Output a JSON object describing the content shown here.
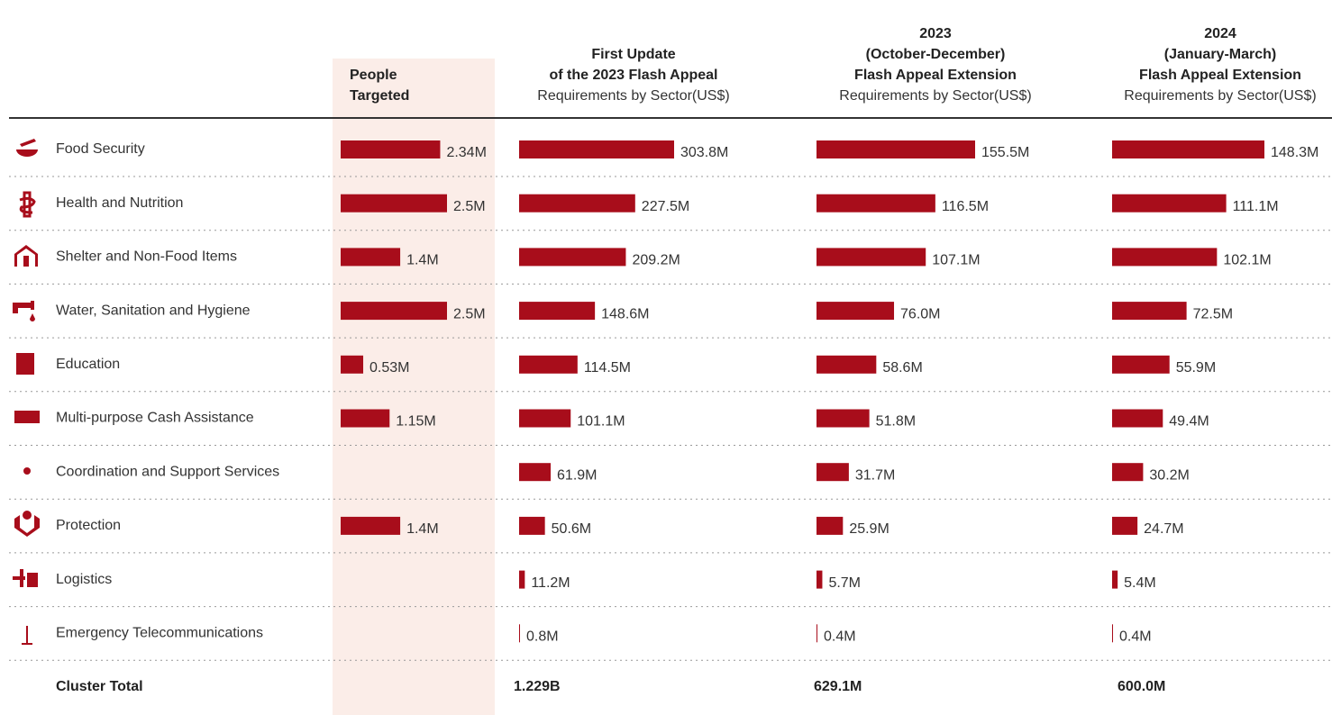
{
  "table": {
    "columns": [
      {
        "title": [
          "People",
          "Targeted"
        ]
      },
      {
        "title": [
          "First Update",
          "of the 2023 Flash Appeal"
        ],
        "subtitle": "Requirements by Sector(US$)"
      },
      {
        "title": [
          "2023",
          "(October-December)",
          "Flash Appeal Extension"
        ],
        "subtitle": "Requirements by Sector(US$)"
      },
      {
        "title": [
          "2024",
          "(January-March)",
          "Flash Appeal Extension"
        ],
        "subtitle": "Requirements by Sector(US$)"
      }
    ],
    "color": "#a80d1b",
    "rows": [
      {
        "label": "Food Security",
        "values": [
          2.34,
          303.8,
          155.5,
          148.3
        ],
        "value_labels": [
          "2.34M",
          "303.8M",
          "155.5M",
          "148.3M"
        ]
      },
      {
        "label": "Health and Nutrition",
        "values": [
          2.5,
          227.5,
          116.5,
          111.1
        ],
        "value_labels": [
          "2.5M",
          "227.5M",
          "116.5M",
          "111.1M"
        ]
      },
      {
        "label": "Shelter and Non-Food Items",
        "values": [
          1.4,
          209.2,
          107.1,
          102.1
        ],
        "value_labels": [
          "1.4M",
          "209.2M",
          "107.1M",
          "102.1M"
        ]
      },
      {
        "label": "Water, Sanitation and Hygiene",
        "values": [
          2.5,
          148.6,
          76.0,
          72.5
        ],
        "value_labels": [
          "2.5M",
          "148.6M",
          "76.0M",
          "72.5M"
        ]
      },
      {
        "label": "Education",
        "values": [
          0.53,
          114.5,
          58.6,
          55.9
        ],
        "value_labels": [
          "0.53M",
          "114.5M",
          "58.6M",
          "55.9M"
        ]
      },
      {
        "label": "Multi-purpose Cash Assistance",
        "values": [
          1.15,
          101.1,
          51.8,
          49.4
        ],
        "value_labels": [
          "1.15M",
          "101.1M",
          "51.8M",
          "49.4M"
        ]
      },
      {
        "label": "Coordination and Support Services",
        "values": [
          null,
          61.9,
          31.7,
          30.2
        ],
        "value_labels": [
          null,
          "61.9M",
          "31.7M",
          "30.2M"
        ]
      },
      {
        "label": "Protection",
        "values": [
          1.4,
          50.6,
          25.9,
          24.7
        ],
        "value_labels": [
          "1.4M",
          "50.6M",
          "25.9M",
          "24.7M"
        ]
      },
      {
        "label": "Logistics",
        "values": [
          null,
          11.2,
          5.7,
          5.4
        ],
        "value_labels": [
          null,
          "11.2M",
          "5.7M",
          "5.4M"
        ]
      },
      {
        "label": "Emergency Telecommunications",
        "values": [
          null,
          0.8,
          0.4,
          0.4
        ],
        "value_labels": [
          null,
          "0.8M",
          "0.4M",
          "0.4M"
        ]
      }
    ],
    "total_label": "Cluster Total",
    "totals": [
      "1.229B",
      "629.1M",
      "600.0M"
    ]
  }
}
